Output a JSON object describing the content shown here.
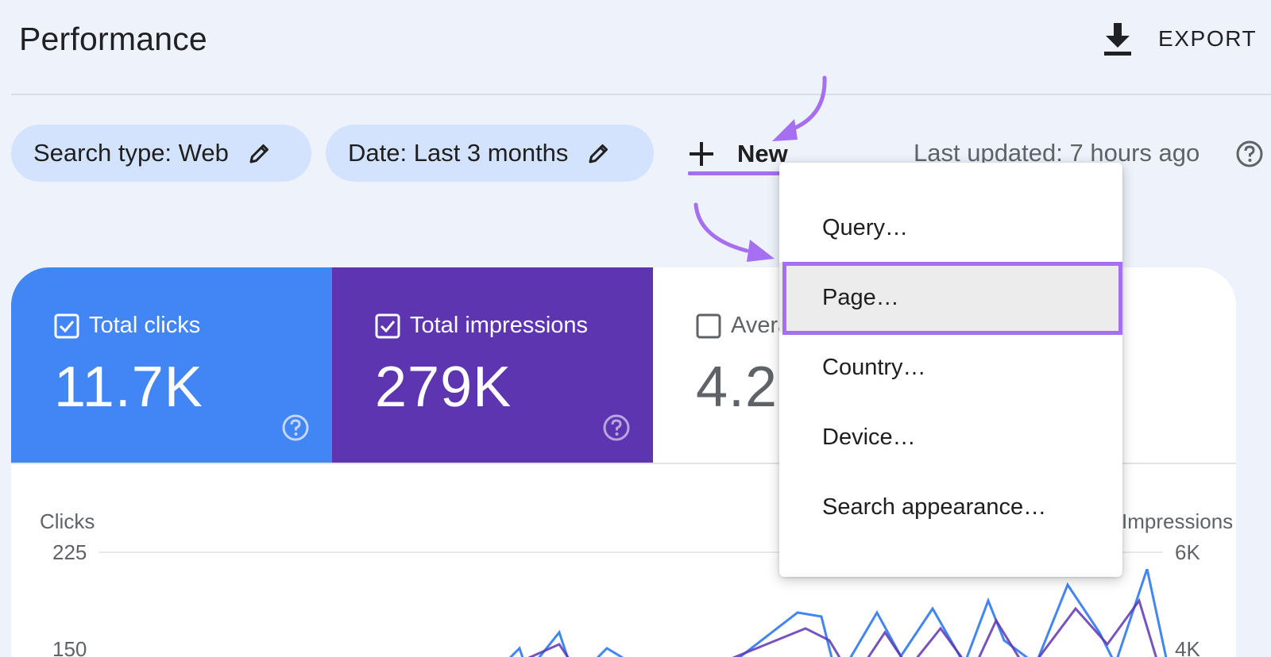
{
  "header": {
    "title": "Performance",
    "export_label": "EXPORT"
  },
  "filters": {
    "search_type": "Search type: Web",
    "date": "Date: Last 3 months",
    "new_label": "New",
    "last_updated": "Last updated: 7 hours ago"
  },
  "metrics": [
    {
      "label": "Total clicks",
      "value": "11.7K",
      "checked": true,
      "color": "#4285f4"
    },
    {
      "label": "Total impressions",
      "value": "279K",
      "checked": true,
      "color": "#5e35b1"
    },
    {
      "label": "Average position",
      "value": "4.2",
      "checked": false
    }
  ],
  "chart": {
    "left_axis_label": "Clicks",
    "right_axis_label": "Impressions",
    "left_ticks": [
      "225",
      "150"
    ],
    "right_ticks": [
      "6K",
      "4K"
    ]
  },
  "menu": {
    "items": [
      "Query…",
      "Page…",
      "Country…",
      "Device…",
      "Search appearance…"
    ],
    "highlighted_index": 1
  },
  "colors": {
    "accent_purple": "#a66ef0",
    "chip_bg": "#d3e3fd",
    "clicks": "#4285f4",
    "impressions": "#5e35b1"
  },
  "icons": {
    "export": "download-icon",
    "chip_edit": "pencil-icon",
    "new": "plus-icon",
    "help": "help-circle-icon",
    "metric_check": "checkbox-icon"
  }
}
